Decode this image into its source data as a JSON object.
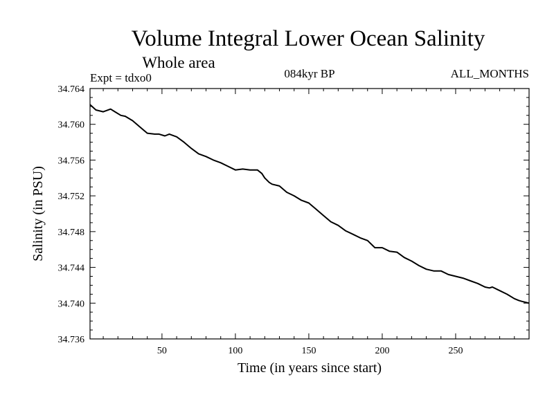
{
  "chart_data": {
    "type": "line",
    "title": "Volume Integral Lower Ocean Salinity",
    "subtitle": "Whole area",
    "experiment": "Expt = tdxo0",
    "period": "084kyr BP",
    "months": "ALL_MONTHS",
    "xlabel": "Time (in years since start)",
    "ylabel": "Salinity (in PSU)",
    "xlim": [
      1,
      300
    ],
    "ylim": [
      34.736,
      34.764
    ],
    "xticks": [
      50,
      100,
      150,
      200,
      250
    ],
    "yticks": [
      "34.736",
      "34.740",
      "34.744",
      "34.748",
      "34.752",
      "34.756",
      "34.760",
      "34.764"
    ],
    "grid": false,
    "series": [
      {
        "color": "#000000",
        "x": [
          1,
          5,
          10,
          15,
          18,
          22,
          25,
          30,
          35,
          40,
          45,
          48,
          52,
          55,
          60,
          65,
          70,
          75,
          80,
          85,
          90,
          95,
          100,
          105,
          110,
          115,
          118,
          120,
          123,
          125,
          130,
          135,
          140,
          145,
          150,
          155,
          160,
          165,
          170,
          175,
          180,
          185,
          190,
          195,
          200,
          205,
          210,
          215,
          220,
          225,
          230,
          235,
          240,
          245,
          250,
          255,
          260,
          265,
          270,
          273,
          275,
          280,
          285,
          290,
          293,
          295,
          300
        ],
        "y": [
          34.7622,
          34.7616,
          34.7614,
          34.7617,
          34.7614,
          34.761,
          34.7609,
          34.7604,
          34.7597,
          34.759,
          34.7589,
          34.7589,
          34.7587,
          34.7589,
          34.7586,
          34.758,
          34.7573,
          34.7567,
          34.7564,
          34.756,
          34.7557,
          34.7553,
          34.7549,
          34.755,
          34.7549,
          34.7549,
          34.7545,
          34.754,
          34.7535,
          34.7533,
          34.7531,
          34.7524,
          34.752,
          34.7515,
          34.7512,
          34.7505,
          34.7498,
          34.7491,
          34.7487,
          34.7481,
          34.7477,
          34.7473,
          34.747,
          34.7462,
          34.7462,
          34.7458,
          34.7457,
          34.7451,
          34.7447,
          34.7442,
          34.7438,
          34.7436,
          34.7436,
          34.7432,
          34.743,
          34.7428,
          34.7425,
          34.7422,
          34.7418,
          34.7417,
          34.7418,
          34.7414,
          34.741,
          34.7405,
          34.7403,
          34.7402,
          34.74
        ]
      }
    ]
  }
}
